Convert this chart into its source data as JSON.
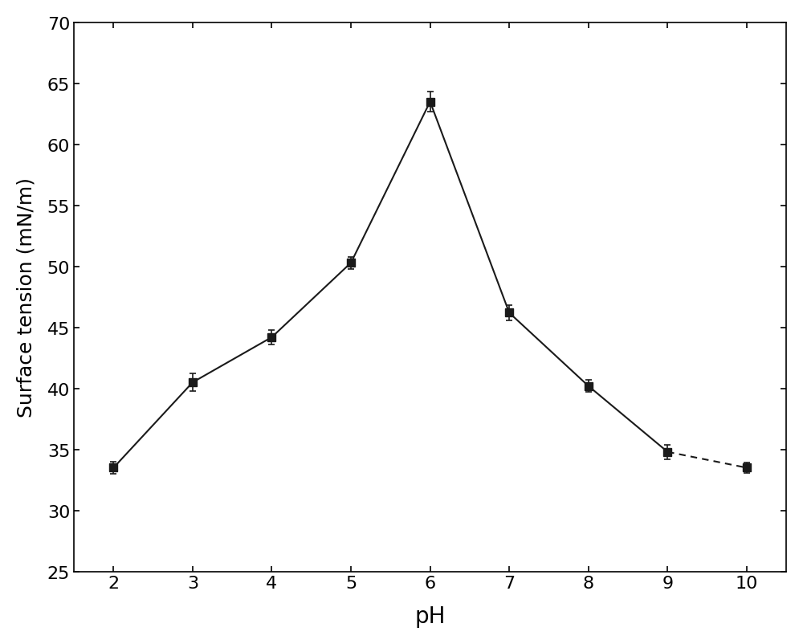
{
  "x": [
    2,
    3,
    4,
    5,
    6,
    7,
    8,
    9,
    10
  ],
  "y": [
    33.5,
    40.5,
    44.2,
    50.3,
    63.5,
    46.2,
    40.2,
    34.8,
    33.5
  ],
  "yerr": [
    0.5,
    0.7,
    0.6,
    0.5,
    0.8,
    0.6,
    0.5,
    0.6,
    0.4
  ],
  "xlabel": "pH",
  "ylabel": "Surface tension (mN/m)",
  "xlim": [
    1.5,
    10.5
  ],
  "ylim": [
    25,
    70
  ],
  "xticks": [
    2,
    3,
    4,
    5,
    6,
    7,
    8,
    9,
    10
  ],
  "yticks": [
    25,
    30,
    35,
    40,
    45,
    50,
    55,
    60,
    65,
    70
  ],
  "line_color": "#1a1a1a",
  "marker_color": "#1a1a1a",
  "marker_size": 7,
  "line_width": 1.5,
  "capsize": 3,
  "elinewidth": 1.2,
  "background_color": "#ffffff",
  "xlabel_fontsize": 20,
  "ylabel_fontsize": 18,
  "tick_labelsize": 16,
  "solid_segment": [
    0,
    7
  ],
  "dashed_segment": [
    7,
    9
  ]
}
